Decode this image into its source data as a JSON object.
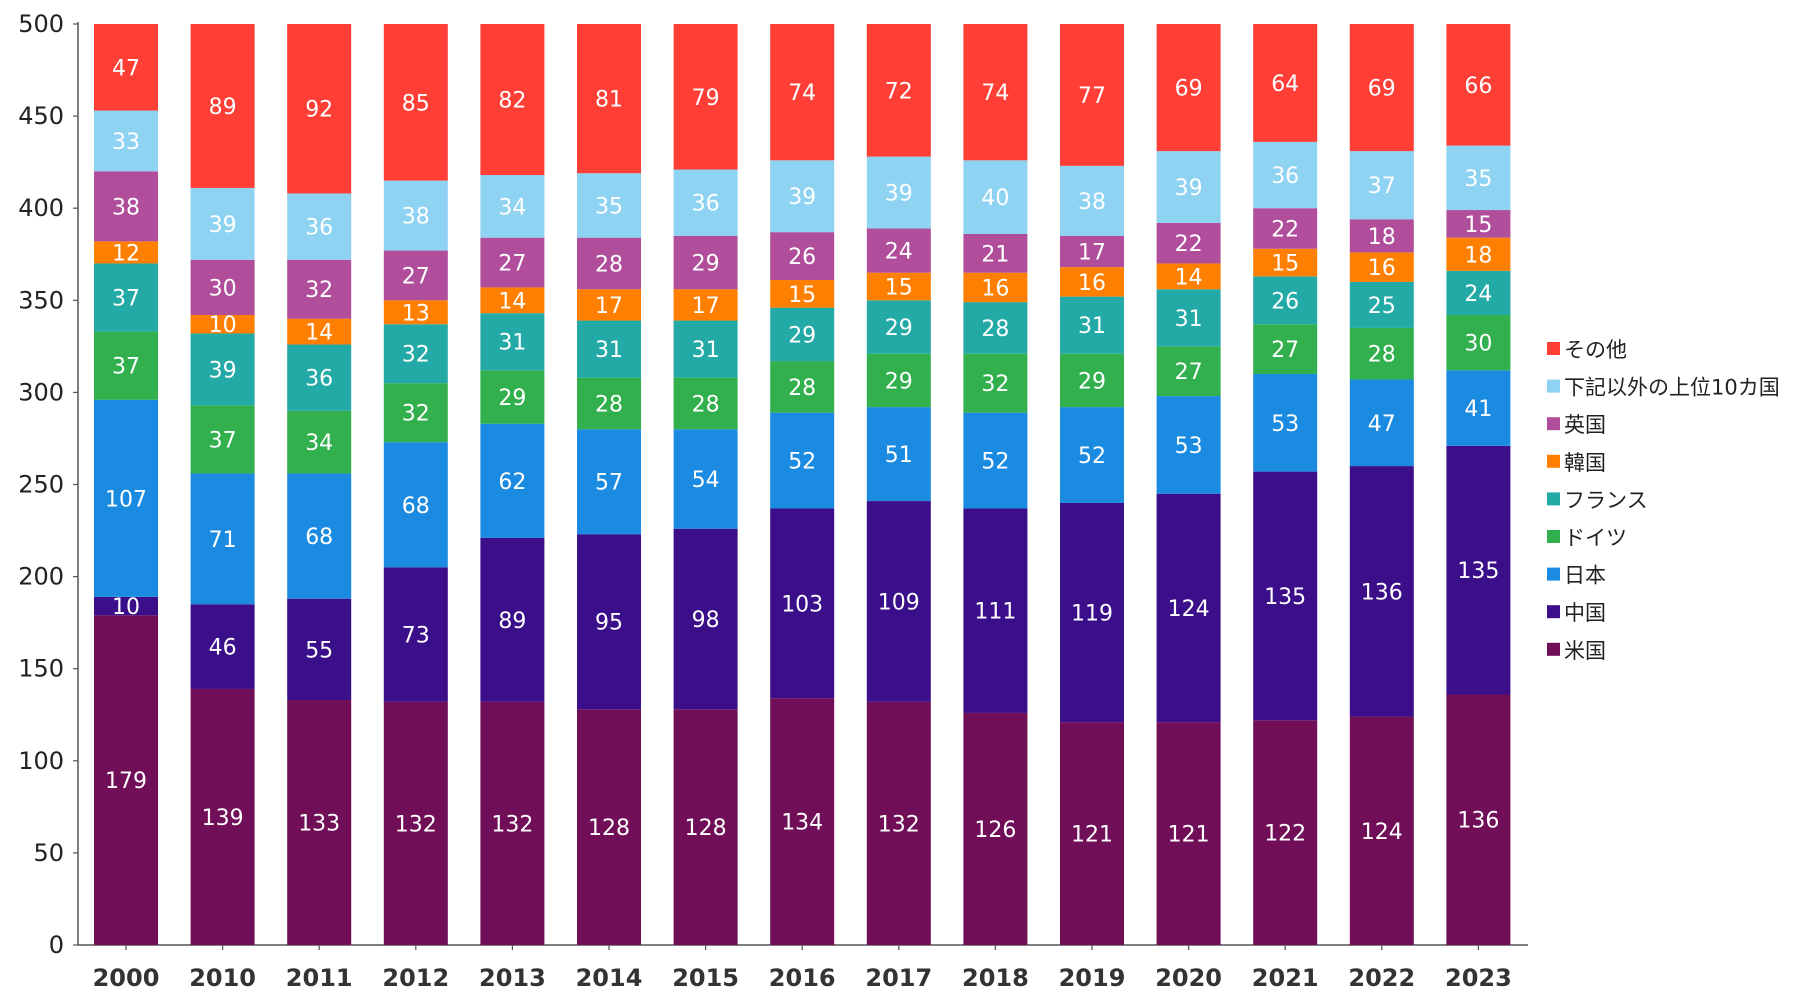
{
  "chart_data": {
    "type": "bar",
    "stacked": true,
    "title": "",
    "xlabel": "",
    "ylabel": "",
    "ylim": [
      0,
      500
    ],
    "yticks": [
      0,
      50,
      100,
      150,
      200,
      250,
      300,
      350,
      400,
      450,
      500
    ],
    "grid": false,
    "legend_position": "right",
    "categories": [
      "2000",
      "2010",
      "2011",
      "2012",
      "2013",
      "2014",
      "2015",
      "2016",
      "2017",
      "2018",
      "2019",
      "2020",
      "2021",
      "2022",
      "2023"
    ],
    "series": [
      {
        "name": "米国",
        "color": "#700e57",
        "values": [
          179,
          139,
          133,
          132,
          132,
          128,
          128,
          134,
          132,
          126,
          121,
          121,
          122,
          124,
          136
        ]
      },
      {
        "name": "中国",
        "color": "#3b0e8a",
        "values": [
          10,
          46,
          55,
          73,
          89,
          95,
          98,
          103,
          109,
          111,
          119,
          124,
          135,
          136,
          135
        ]
      },
      {
        "name": "日本",
        "color": "#1b8be1",
        "values": [
          107,
          71,
          68,
          68,
          62,
          57,
          54,
          52,
          51,
          52,
          52,
          53,
          53,
          47,
          41
        ]
      },
      {
        "name": "ドイツ",
        "color": "#31b04d",
        "values": [
          37,
          37,
          34,
          32,
          29,
          28,
          28,
          28,
          29,
          32,
          29,
          27,
          27,
          28,
          30
        ]
      },
      {
        "name": "フランス",
        "color": "#23aaa6",
        "values": [
          37,
          39,
          36,
          32,
          31,
          31,
          31,
          29,
          29,
          28,
          31,
          31,
          26,
          25,
          24
        ]
      },
      {
        "name": "韓国",
        "color": "#ff7f00",
        "values": [
          12,
          10,
          14,
          13,
          14,
          17,
          17,
          15,
          15,
          16,
          16,
          14,
          15,
          16,
          18
        ]
      },
      {
        "name": "英国",
        "color": "#b14e9b",
        "values": [
          38,
          30,
          32,
          27,
          27,
          28,
          29,
          26,
          24,
          21,
          17,
          22,
          22,
          18,
          15
        ]
      },
      {
        "name": "下記以外の上位10カ国",
        "color": "#8fd3f2",
        "values": [
          33,
          39,
          36,
          38,
          34,
          35,
          36,
          39,
          39,
          40,
          38,
          39,
          36,
          37,
          35
        ]
      },
      {
        "name": "その他",
        "color": "#ff3e36",
        "values": [
          47,
          89,
          92,
          85,
          82,
          81,
          79,
          74,
          72,
          74,
          77,
          69,
          64,
          69,
          66
        ]
      }
    ]
  }
}
